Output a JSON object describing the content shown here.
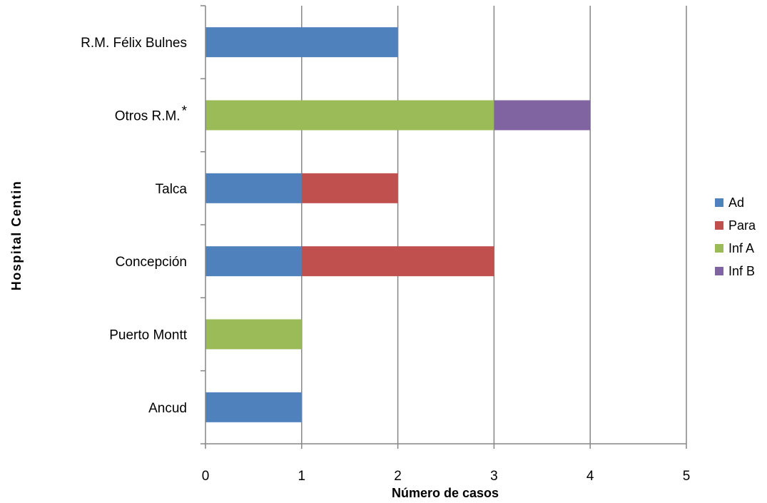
{
  "chart_data": {
    "type": "bar",
    "orientation": "horizontal",
    "stacked": true,
    "categories": [
      "R.M.  Félix Bulnes",
      "Otros R.M.",
      "Talca",
      "Concepción",
      "Puerto Montt",
      "Ancud"
    ],
    "category_marks": [
      "",
      "*",
      "",
      "",
      "",
      ""
    ],
    "series": [
      {
        "name": "Ad",
        "color": "#4F81BD",
        "values": [
          2,
          0,
          1,
          1,
          0,
          1
        ]
      },
      {
        "name": "Para",
        "color": "#C0504D",
        "values": [
          0,
          0,
          1,
          2,
          0,
          0
        ]
      },
      {
        "name": "Inf A",
        "color": "#9BBB59",
        "values": [
          0,
          3,
          0,
          0,
          1,
          0
        ]
      },
      {
        "name": "Inf B",
        "color": "#8064A2",
        "values": [
          0,
          1,
          0,
          0,
          0,
          0
        ]
      }
    ],
    "xlabel": "Número de casos",
    "ylabel": "Hospital Centin",
    "xlim": [
      0,
      5
    ],
    "xticks": [
      "0",
      "1",
      "2",
      "3",
      "4",
      "5"
    ],
    "grid": "vertical",
    "legend_position": "right"
  }
}
